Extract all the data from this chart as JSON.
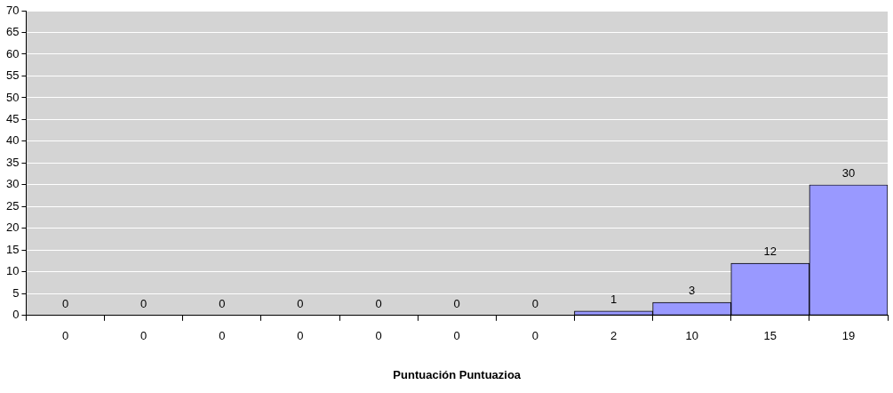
{
  "chart_data": {
    "type": "bar",
    "xlabel": "Puntuación Puntuazioa",
    "categories": [
      "0",
      "0",
      "0",
      "0",
      "0",
      "0",
      "0",
      "2",
      "10",
      "15",
      "19"
    ],
    "values": [
      0,
      0,
      0,
      0,
      0,
      0,
      0,
      1,
      3,
      12,
      30
    ],
    "color": "#9999ff",
    "ylim": [
      0,
      70
    ],
    "yticks": [
      0,
      5,
      10,
      15,
      20,
      25,
      30,
      35,
      40,
      45,
      50,
      55,
      60,
      65,
      70
    ],
    "grid": "y",
    "legend": false,
    "data_labels": true
  }
}
